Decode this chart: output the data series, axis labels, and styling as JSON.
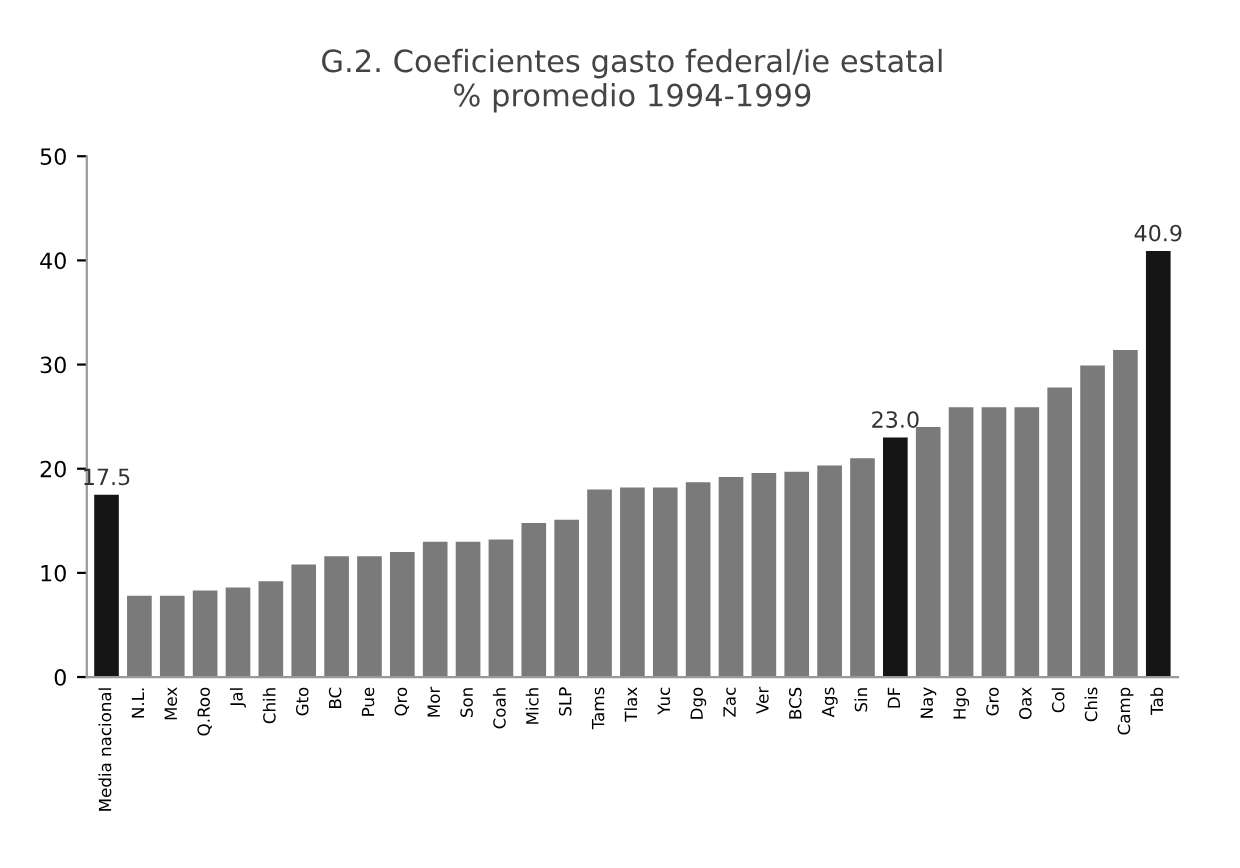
{
  "chart_data": {
    "type": "bar",
    "title": "G.2. Coeficientes gasto federal/ie estatal\n% promedio 1994-1999",
    "categories": [
      "Media nacional",
      "N.L.",
      "Mex",
      "Q.Roo",
      "Jal",
      "Chih",
      "Gto",
      "BC",
      "Pue",
      "Qro",
      "Mor",
      "Son",
      "Coah",
      "Mich",
      "SLP",
      "Tams",
      "Tlax",
      "Yuc",
      "Dgo",
      "Zac",
      "Ver",
      "BCS",
      "Ags",
      "Sin",
      "DF",
      "Nay",
      "Hgo",
      "Gro",
      "Oax",
      "Col",
      "Chis",
      "Camp",
      "Tab"
    ],
    "values": [
      17.5,
      7.8,
      7.8,
      8.3,
      8.6,
      9.2,
      10.8,
      11.6,
      11.6,
      12.0,
      13.0,
      13.0,
      13.2,
      14.8,
      15.1,
      18.0,
      18.2,
      18.2,
      18.7,
      19.2,
      19.6,
      19.7,
      20.3,
      21.0,
      23.0,
      24.0,
      25.9,
      25.9,
      25.9,
      27.8,
      29.9,
      31.4,
      40.9
    ],
    "colors": [
      "#151515",
      "#7a7a7a",
      "#7a7a7a",
      "#7a7a7a",
      "#7a7a7a",
      "#7a7a7a",
      "#7a7a7a",
      "#7a7a7a",
      "#7a7a7a",
      "#7a7a7a",
      "#7a7a7a",
      "#7a7a7a",
      "#7a7a7a",
      "#7a7a7a",
      "#7a7a7a",
      "#7a7a7a",
      "#7a7a7a",
      "#7a7a7a",
      "#7a7a7a",
      "#7a7a7a",
      "#7a7a7a",
      "#7a7a7a",
      "#7a7a7a",
      "#7a7a7a",
      "#151515",
      "#7a7a7a",
      "#7a7a7a",
      "#7a7a7a",
      "#7a7a7a",
      "#7a7a7a",
      "#7a7a7a",
      "#7a7a7a",
      "#151515"
    ],
    "value_labels": [
      "17.5",
      null,
      null,
      null,
      null,
      null,
      null,
      null,
      null,
      null,
      null,
      null,
      null,
      null,
      null,
      null,
      null,
      null,
      null,
      null,
      null,
      null,
      null,
      null,
      "23.0",
      null,
      null,
      null,
      null,
      null,
      null,
      null,
      "40.9"
    ],
    "ylim": [
      0,
      50
    ],
    "yticks": [
      0,
      10,
      20,
      30,
      40,
      50
    ],
    "grid": false
  }
}
